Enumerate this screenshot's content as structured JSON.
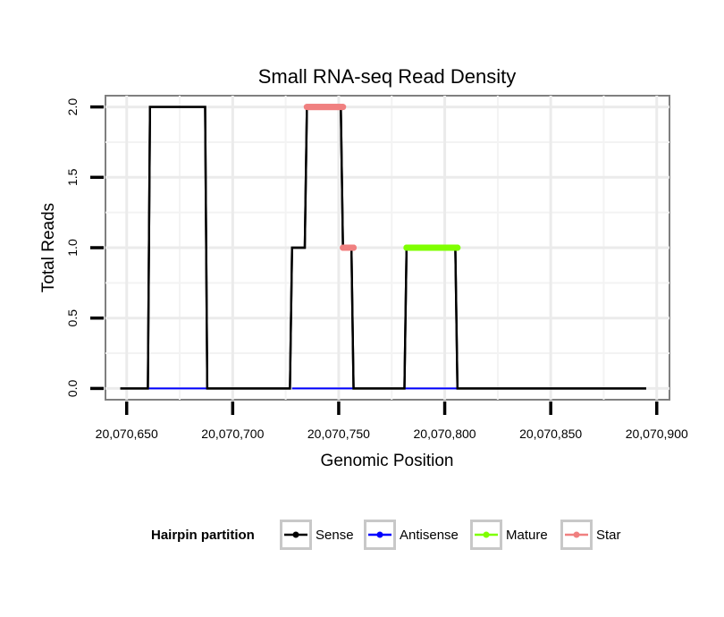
{
  "chart_data": {
    "type": "line",
    "title": "Small RNA-seq Read Density",
    "xlabel": "Genomic Position",
    "ylabel": "Total Reads",
    "xlim": [
      20070640,
      20070906
    ],
    "ylim": [
      -0.08,
      2.08
    ],
    "xticks": [
      20070650,
      20070700,
      20070750,
      20070800,
      20070850,
      20070900
    ],
    "xtick_labels": [
      "20,070,650",
      "20,070,700",
      "20,070,750",
      "20,070,800",
      "20,070,850",
      "20,070,900"
    ],
    "yticks": [
      0,
      0.5,
      1,
      1.5,
      2
    ],
    "ytick_labels": [
      "0.0",
      "0.5",
      "1.0",
      "1.5",
      "2.0"
    ],
    "grid": true,
    "legend": {
      "title": "Hairpin partition",
      "position": "bottom",
      "entries": [
        {
          "name": "Sense",
          "color": "#000000"
        },
        {
          "name": "Antisense",
          "color": "#0000ff"
        },
        {
          "name": "Mature",
          "color": "#7fff00"
        },
        {
          "name": "Star",
          "color": "#f08080"
        }
      ]
    },
    "series": [
      {
        "name": "Sense",
        "color": "#000000",
        "x": [
          20070647,
          20070660,
          20070661,
          20070687,
          20070688,
          20070727,
          20070728,
          20070734,
          20070735,
          20070751,
          20070752,
          20070756,
          20070757,
          20070781,
          20070782,
          20070805,
          20070806,
          20070895
        ],
        "y": [
          0,
          0,
          2,
          2,
          0,
          0,
          1,
          1,
          2,
          2,
          1,
          1,
          0,
          0,
          1,
          1,
          0,
          0
        ]
      },
      {
        "name": "Antisense",
        "color": "#0000ff",
        "segments": [
          [
            20070660,
            20070688
          ],
          [
            20070728,
            20070757
          ],
          [
            20070781,
            20070806
          ]
        ],
        "y": 0
      },
      {
        "name": "Mature",
        "color": "#7fff00",
        "segments": [
          [
            20070782,
            20070806
          ]
        ],
        "y": 1
      },
      {
        "name": "Star",
        "color": "#f08080",
        "segments": [
          [
            20070735,
            20070752,
            2
          ],
          [
            20070752,
            20070757,
            1
          ]
        ]
      }
    ]
  }
}
